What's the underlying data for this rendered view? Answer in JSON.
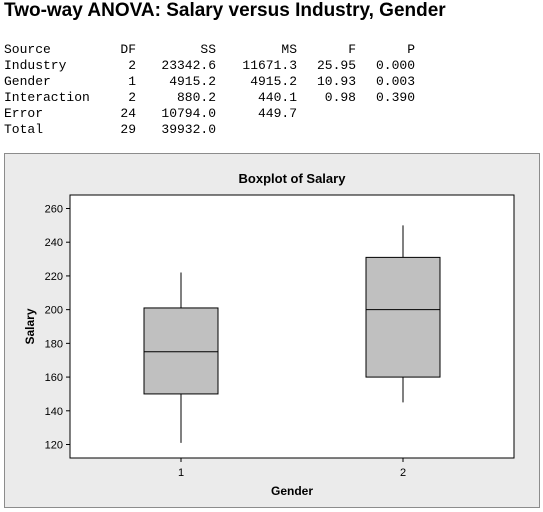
{
  "page_title": "Two-way ANOVA: Salary versus Industry, Gender",
  "anova_table": {
    "headers": [
      "Source",
      "DF",
      "SS",
      "MS",
      "F",
      "P"
    ],
    "rows": [
      [
        "Industry",
        "2",
        "23342.6",
        "11671.3",
        "25.95",
        "0.000"
      ],
      [
        "Gender",
        "1",
        "4915.2",
        "4915.2",
        "10.93",
        "0.003"
      ],
      [
        "Interaction",
        "2",
        "880.2",
        "440.1",
        "0.98",
        "0.390"
      ],
      [
        "Error",
        "24",
        "10794.0",
        "449.7",
        "",
        ""
      ],
      [
        "Total",
        "29",
        "39932.0",
        "",
        "",
        ""
      ]
    ]
  },
  "chart_data": {
    "type": "boxplot",
    "title": "Boxplot of Salary",
    "xlabel": "Gender",
    "ylabel": "Salary",
    "categories": [
      "1",
      "2"
    ],
    "ylim": [
      112,
      268
    ],
    "yticks": [
      120,
      140,
      160,
      180,
      200,
      220,
      240,
      260
    ],
    "boxes": [
      {
        "category": "1",
        "min": 121,
        "q1": 150,
        "median": 175,
        "q3": 201,
        "max": 222
      },
      {
        "category": "2",
        "min": 145,
        "q1": 160,
        "median": 200,
        "q3": 231,
        "max": 250
      }
    ],
    "colors": {
      "frame_bg": "#ebebeb",
      "plot_bg": "#ffffff",
      "box_fill": "#c0c0c0",
      "line": "#000000"
    },
    "grid": false
  }
}
